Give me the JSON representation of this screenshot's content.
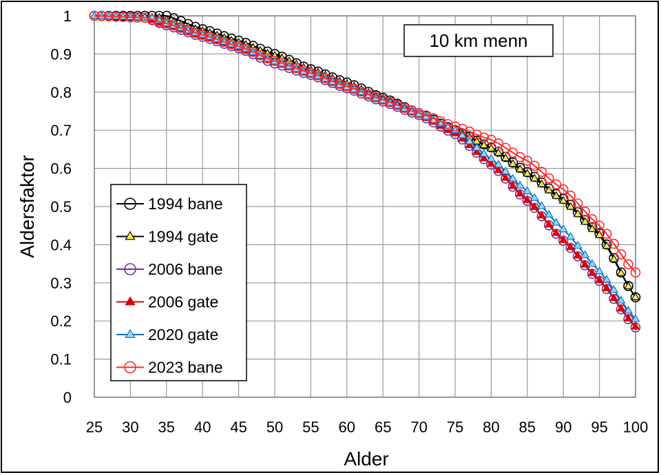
{
  "chart_data": {
    "type": "line",
    "title": "10 km menn",
    "xlabel": "Alder",
    "ylabel": "Aldersfaktor",
    "xlim": [
      25,
      100
    ],
    "ylim": [
      0,
      1
    ],
    "x_ticks": [
      25,
      30,
      35,
      40,
      45,
      50,
      55,
      60,
      65,
      70,
      75,
      80,
      85,
      90,
      95,
      100
    ],
    "y_ticks": [
      0,
      0.1,
      0.2,
      0.3,
      0.4,
      0.5,
      0.6,
      0.7,
      0.8,
      0.9,
      1
    ],
    "y_tick_labels": [
      "0",
      "0.1",
      "0.2",
      "0.3",
      "0.4",
      "0.5",
      "0.6",
      "0.7",
      "0.8",
      "0.9",
      "1"
    ],
    "grid": true,
    "legend_position": "left",
    "series": [
      {
        "name": "1994 bane",
        "color": "#000000",
        "fill": "none",
        "marker": "circle",
        "keypoints": [
          [
            25,
            1
          ],
          [
            35,
            1
          ],
          [
            40,
            0.965
          ],
          [
            45,
            0.935
          ],
          [
            50,
            0.9
          ],
          [
            55,
            0.86
          ],
          [
            60,
            0.825
          ],
          [
            65,
            0.785
          ],
          [
            70,
            0.745
          ],
          [
            75,
            0.7
          ],
          [
            80,
            0.655
          ],
          [
            85,
            0.59
          ],
          [
            90,
            0.52
          ],
          [
            95,
            0.43
          ],
          [
            100,
            0.262
          ]
        ]
      },
      {
        "name": "1994 gate",
        "color": "#000000",
        "fill": "#f4e94a",
        "marker": "triangle",
        "keypoints": [
          [
            25,
            1
          ],
          [
            34,
            0.995
          ],
          [
            40,
            0.96
          ],
          [
            45,
            0.93
          ],
          [
            50,
            0.895
          ],
          [
            55,
            0.858
          ],
          [
            60,
            0.822
          ],
          [
            65,
            0.783
          ],
          [
            70,
            0.743
          ],
          [
            75,
            0.7
          ],
          [
            80,
            0.652
          ],
          [
            85,
            0.586
          ],
          [
            90,
            0.515
          ],
          [
            95,
            0.425
          ],
          [
            100,
            0.262
          ]
        ]
      },
      {
        "name": "2006 bane",
        "color": "#7030a0",
        "fill": "none",
        "marker": "circle",
        "keypoints": [
          [
            25,
            1
          ],
          [
            32,
            0.995
          ],
          [
            35,
            0.975
          ],
          [
            40,
            0.945
          ],
          [
            45,
            0.915
          ],
          [
            50,
            0.875
          ],
          [
            55,
            0.845
          ],
          [
            60,
            0.81
          ],
          [
            65,
            0.775
          ],
          [
            70,
            0.74
          ],
          [
            75,
            0.69
          ],
          [
            80,
            0.61
          ],
          [
            85,
            0.515
          ],
          [
            90,
            0.41
          ],
          [
            95,
            0.305
          ],
          [
            100,
            0.183
          ]
        ]
      },
      {
        "name": "2006 gate",
        "color": "#e00000",
        "fill": "#e00000",
        "marker": "triangle",
        "keypoints": [
          [
            25,
            1
          ],
          [
            32,
            0.995
          ],
          [
            35,
            0.977
          ],
          [
            40,
            0.947
          ],
          [
            45,
            0.917
          ],
          [
            50,
            0.877
          ],
          [
            55,
            0.846
          ],
          [
            60,
            0.811
          ],
          [
            65,
            0.776
          ],
          [
            70,
            0.741
          ],
          [
            75,
            0.692
          ],
          [
            80,
            0.612
          ],
          [
            85,
            0.517
          ],
          [
            90,
            0.412
          ],
          [
            95,
            0.307
          ],
          [
            100,
            0.185
          ]
        ]
      },
      {
        "name": "2020 gate",
        "color": "#0070c0",
        "fill": "#9dd4f5",
        "marker": "triangle",
        "keypoints": [
          [
            25,
            1
          ],
          [
            33,
            0.995
          ],
          [
            35,
            0.98
          ],
          [
            40,
            0.95
          ],
          [
            45,
            0.92
          ],
          [
            50,
            0.88
          ],
          [
            55,
            0.848
          ],
          [
            60,
            0.813
          ],
          [
            65,
            0.778
          ],
          [
            70,
            0.743
          ],
          [
            75,
            0.7
          ],
          [
            80,
            0.625
          ],
          [
            85,
            0.54
          ],
          [
            90,
            0.44
          ],
          [
            95,
            0.33
          ],
          [
            100,
            0.205
          ]
        ]
      },
      {
        "name": "2023 bane",
        "color": "#ff2a2a",
        "fill": "none",
        "marker": "circle",
        "keypoints": [
          [
            25,
            1
          ],
          [
            32,
            0.995
          ],
          [
            35,
            0.98
          ],
          [
            40,
            0.95
          ],
          [
            45,
            0.92
          ],
          [
            50,
            0.882
          ],
          [
            55,
            0.85
          ],
          [
            60,
            0.815
          ],
          [
            65,
            0.78
          ],
          [
            70,
            0.745
          ],
          [
            75,
            0.71
          ],
          [
            80,
            0.675
          ],
          [
            85,
            0.62
          ],
          [
            90,
            0.545
          ],
          [
            95,
            0.45
          ],
          [
            100,
            0.327
          ]
        ]
      }
    ]
  }
}
